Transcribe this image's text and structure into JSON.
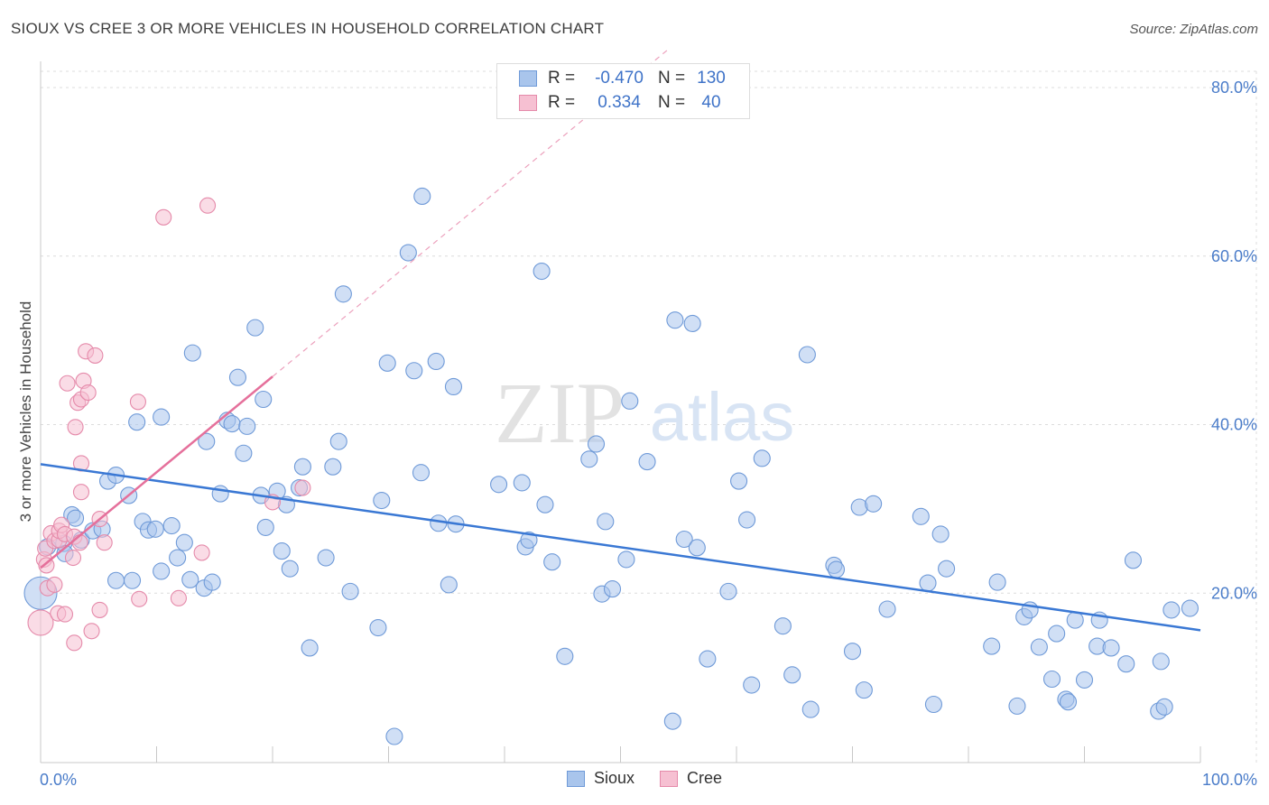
{
  "title": "SIOUX VS CREE 3 OR MORE VEHICLES IN HOUSEHOLD CORRELATION CHART",
  "source": "Source: ZipAtlas.com",
  "watermark": {
    "zip": "ZIP",
    "atlas": "atlas"
  },
  "legend": {
    "rows": [
      {
        "r_label": "R =",
        "r_value": "-0.470",
        "n_label": "N =",
        "n_value": "130",
        "color": "#a9c5ec",
        "border": "#6f9ad8"
      },
      {
        "r_label": "R =",
        "r_value": "0.334",
        "n_label": "N =",
        "n_value": "40",
        "color": "#f6c0d2",
        "border": "#e58aaa"
      }
    ]
  },
  "bottom_legend": {
    "series1": "Sioux",
    "series2": "Cree"
  },
  "chart_data": {
    "type": "scatter",
    "title": "SIOUX VS CREE 3 OR MORE VEHICLES IN HOUSEHOLD CORRELATION CHART",
    "xlabel": "",
    "ylabel": "3 or more Vehicles in Household",
    "xlim": [
      0,
      100
    ],
    "ylim": [
      0,
      80
    ],
    "x_tick_labels": [
      "0.0%",
      "100.0%"
    ],
    "y_ticks": [
      20,
      40,
      60,
      80
    ],
    "y_tick_labels": [
      "20.0%",
      "40.0%",
      "60.0%",
      "80.0%"
    ],
    "grid": true,
    "colors": {
      "sioux": "#4a7cc9",
      "sioux_fill": "#a9c5ec",
      "cree": "#e57ba0",
      "cree_fill": "#f6c0d2"
    },
    "series": [
      {
        "name": "Sioux",
        "trend": {
          "x": [
            0,
            100
          ],
          "y": [
            35.3,
            15.6
          ]
        },
        "points": [
          [
            0,
            20.0
          ],
          [
            0.6,
            25.5
          ],
          [
            2,
            25.9
          ],
          [
            2.1,
            24.7
          ],
          [
            2.7,
            29.3
          ],
          [
            3,
            28.9
          ],
          [
            3.5,
            26.3
          ],
          [
            4.5,
            27.4
          ],
          [
            5.3,
            27.6
          ],
          [
            5.8,
            33.3
          ],
          [
            6.5,
            34.0
          ],
          [
            6.5,
            21.5
          ],
          [
            7.6,
            31.6
          ],
          [
            7.9,
            21.5
          ],
          [
            8.3,
            40.3
          ],
          [
            8.8,
            28.5
          ],
          [
            9.3,
            27.5
          ],
          [
            9.9,
            27.6
          ],
          [
            10.4,
            40.9
          ],
          [
            10.4,
            22.6
          ],
          [
            11.3,
            28.0
          ],
          [
            11.8,
            24.2
          ],
          [
            12.4,
            26.0
          ],
          [
            12.9,
            21.6
          ],
          [
            13.1,
            48.5
          ],
          [
            14.1,
            20.6
          ],
          [
            14.3,
            38.0
          ],
          [
            14.8,
            21.3
          ],
          [
            15.5,
            31.8
          ],
          [
            16.1,
            40.5
          ],
          [
            16.5,
            40.1
          ],
          [
            17,
            45.6
          ],
          [
            17.5,
            36.6
          ],
          [
            17.8,
            39.8
          ],
          [
            18.5,
            51.5
          ],
          [
            19,
            31.6
          ],
          [
            19.2,
            43.0
          ],
          [
            19.4,
            27.8
          ],
          [
            20.4,
            32.1
          ],
          [
            20.8,
            25.0
          ],
          [
            21.2,
            30.5
          ],
          [
            21.5,
            22.9
          ],
          [
            22.3,
            32.5
          ],
          [
            22.6,
            35.0
          ],
          [
            23.2,
            13.5
          ],
          [
            24.6,
            24.2
          ],
          [
            25.2,
            35.0
          ],
          [
            25.7,
            38.0
          ],
          [
            26.1,
            55.5
          ],
          [
            26.7,
            20.2
          ],
          [
            29.1,
            15.9
          ],
          [
            29.4,
            31.0
          ],
          [
            29.9,
            47.3
          ],
          [
            30.5,
            3.0
          ],
          [
            31.7,
            60.4
          ],
          [
            32.2,
            46.4
          ],
          [
            32.8,
            34.3
          ],
          [
            32.9,
            67.1
          ],
          [
            34.1,
            47.5
          ],
          [
            34.3,
            28.3
          ],
          [
            35.2,
            21.0
          ],
          [
            35.6,
            44.5
          ],
          [
            35.8,
            28.2
          ],
          [
            39.5,
            32.9
          ],
          [
            41.5,
            33.1
          ],
          [
            41.8,
            25.5
          ],
          [
            42.1,
            26.3
          ],
          [
            43.2,
            58.2
          ],
          [
            43.5,
            30.5
          ],
          [
            44.1,
            23.7
          ],
          [
            45.2,
            12.5
          ],
          [
            47.3,
            35.9
          ],
          [
            47.9,
            37.7
          ],
          [
            48.4,
            19.9
          ],
          [
            48.7,
            28.5
          ],
          [
            49.3,
            20.5
          ],
          [
            50.5,
            24.0
          ],
          [
            50.8,
            42.8
          ],
          [
            52.3,
            35.6
          ],
          [
            54.5,
            4.8
          ],
          [
            54.7,
            52.4
          ],
          [
            55.5,
            26.4
          ],
          [
            56.2,
            52.0
          ],
          [
            56.6,
            25.4
          ],
          [
            57.5,
            12.2
          ],
          [
            59.3,
            20.2
          ],
          [
            60.2,
            33.3
          ],
          [
            60.9,
            28.7
          ],
          [
            61.3,
            9.1
          ],
          [
            62.2,
            36.0
          ],
          [
            64.0,
            16.1
          ],
          [
            64.8,
            10.3
          ],
          [
            66.1,
            48.3
          ],
          [
            66.4,
            6.2
          ],
          [
            68.4,
            23.3
          ],
          [
            68.6,
            22.8
          ],
          [
            70.0,
            13.1
          ],
          [
            70.6,
            30.2
          ],
          [
            71.0,
            8.5
          ],
          [
            71.8,
            30.6
          ],
          [
            73.0,
            18.1
          ],
          [
            75.9,
            29.1
          ],
          [
            76.5,
            21.2
          ],
          [
            77.0,
            6.8
          ],
          [
            77.6,
            27.0
          ],
          [
            78.1,
            22.9
          ],
          [
            82.0,
            13.7
          ],
          [
            82.5,
            21.3
          ],
          [
            84.2,
            6.6
          ],
          [
            84.8,
            17.2
          ],
          [
            85.3,
            18.0
          ],
          [
            86.1,
            13.6
          ],
          [
            87.2,
            9.8
          ],
          [
            87.6,
            15.2
          ],
          [
            88.4,
            7.4
          ],
          [
            88.6,
            7.1
          ],
          [
            89.2,
            16.8
          ],
          [
            90.0,
            9.7
          ],
          [
            91.1,
            13.7
          ],
          [
            91.3,
            16.8
          ],
          [
            92.3,
            13.5
          ],
          [
            93.6,
            11.6
          ],
          [
            94.2,
            23.9
          ],
          [
            96.4,
            6.0
          ],
          [
            96.6,
            11.9
          ],
          [
            96.9,
            6.5
          ],
          [
            97.5,
            18.0
          ],
          [
            99.1,
            18.2
          ]
        ]
      },
      {
        "name": "Cree",
        "trend": {
          "x": [
            0,
            20
          ],
          "y": [
            23.0,
            45.7
          ]
        },
        "trend_extension": {
          "x": [
            20,
            54
          ],
          "y": [
            45.7,
            84.4
          ]
        },
        "points": [
          [
            0,
            16.5
          ],
          [
            0.3,
            24.0
          ],
          [
            0.4,
            25.3
          ],
          [
            0.5,
            23.3
          ],
          [
            0.6,
            20.6
          ],
          [
            0.9,
            27.1
          ],
          [
            1.2,
            26.2
          ],
          [
            1.2,
            21.0
          ],
          [
            1.5,
            17.6
          ],
          [
            1.6,
            26.3
          ],
          [
            1.6,
            27.4
          ],
          [
            1.8,
            28.1
          ],
          [
            2.1,
            17.5
          ],
          [
            2.1,
            27.0
          ],
          [
            2.3,
            44.9
          ],
          [
            2.8,
            24.2
          ],
          [
            2.9,
            26.7
          ],
          [
            2.9,
            14.1
          ],
          [
            3.0,
            39.7
          ],
          [
            3.2,
            42.6
          ],
          [
            3.4,
            26.0
          ],
          [
            3.5,
            43.0
          ],
          [
            3.5,
            32.0
          ],
          [
            3.5,
            35.4
          ],
          [
            3.7,
            45.2
          ],
          [
            3.9,
            48.7
          ],
          [
            4.1,
            43.8
          ],
          [
            4.4,
            15.5
          ],
          [
            4.7,
            48.2
          ],
          [
            5.1,
            18.0
          ],
          [
            5.1,
            28.8
          ],
          [
            5.5,
            26.0
          ],
          [
            8.4,
            42.7
          ],
          [
            8.5,
            19.3
          ],
          [
            10.6,
            64.6
          ],
          [
            11.9,
            19.4
          ],
          [
            13.9,
            24.8
          ],
          [
            14.4,
            66.0
          ],
          [
            20.0,
            30.8
          ],
          [
            22.6,
            32.5
          ]
        ]
      }
    ]
  }
}
